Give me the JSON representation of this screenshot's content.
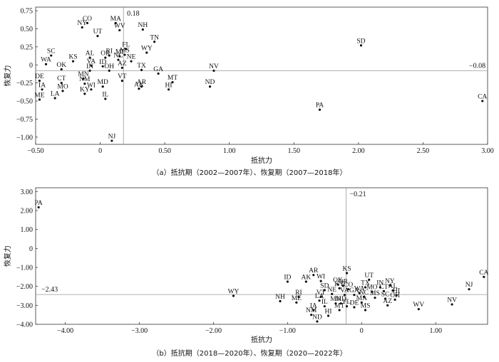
{
  "chart_data": [
    {
      "type": "scatter",
      "caption": "（a）抵抗期（2002—2007年）、恢复期（2007—2018年）",
      "xlabel": "抵抗力",
      "ylabel": "恢复力",
      "xlim": [
        -0.5,
        3.0
      ],
      "ylim": [
        -1.1,
        0.8
      ],
      "xticks": [
        -0.5,
        0,
        0.5,
        1.0,
        1.5,
        2.0,
        2.5,
        3.0
      ],
      "xtick_labels": [
        "−0.50",
        "0",
        "0.50",
        "1.00",
        "1.50",
        "2.00",
        "2.50",
        "3.00"
      ],
      "yticks": [
        0.75,
        0.5,
        0.25,
        0,
        -0.25,
        -0.5,
        -0.75,
        -1.0
      ],
      "ytick_labels": [
        "0.75",
        "0.50",
        "0.25",
        "0",
        "−0.25",
        "−0.50",
        "−0.75",
        "−1.00"
      ],
      "ref_x": 0.18,
      "ref_x_label": "0.18",
      "ref_y": -0.08,
      "ref_y_label": "−0.08",
      "grid": false,
      "points": [
        {
          "label": "CO",
          "x": -0.1,
          "y": 0.58
        },
        {
          "label": "NY",
          "x": -0.14,
          "y": 0.52
        },
        {
          "label": "UT",
          "x": -0.02,
          "y": 0.4
        },
        {
          "label": "MA",
          "x": 0.12,
          "y": 0.58
        },
        {
          "label": "WV",
          "x": 0.15,
          "y": 0.48
        },
        {
          "label": "NH",
          "x": 0.33,
          "y": 0.49
        },
        {
          "label": "TN",
          "x": 0.42,
          "y": 0.32
        },
        {
          "label": "FL",
          "x": 0.2,
          "y": 0.22
        },
        {
          "label": "WY",
          "x": 0.36,
          "y": 0.17
        },
        {
          "label": "SC",
          "x": -0.38,
          "y": 0.13
        },
        {
          "label": "KS",
          "x": -0.21,
          "y": 0.05
        },
        {
          "label": "AL",
          "x": -0.08,
          "y": 0.1
        },
        {
          "label": "OR",
          "x": 0.04,
          "y": 0.1
        },
        {
          "label": "RI",
          "x": 0.07,
          "y": 0.13
        },
        {
          "label": "MI",
          "x": 0.15,
          "y": 0.12
        },
        {
          "label": "MS",
          "x": 0.19,
          "y": 0.14
        },
        {
          "label": "NC",
          "x": 0.14,
          "y": 0.07
        },
        {
          "label": "NE",
          "x": 0.24,
          "y": 0.05
        },
        {
          "label": "WA",
          "x": -0.42,
          "y": 0.01
        },
        {
          "label": "OK",
          "x": -0.3,
          "y": -0.06
        },
        {
          "label": "VA",
          "x": -0.07,
          "y": -0.01
        },
        {
          "label": "ID",
          "x": 0.02,
          "y": -0.02
        },
        {
          "label": "AZ",
          "x": 0.17,
          "y": -0.04
        },
        {
          "label": "TX",
          "x": 0.32,
          "y": -0.07
        },
        {
          "label": "GA",
          "x": 0.45,
          "y": -0.12
        },
        {
          "label": "NV",
          "x": 0.88,
          "y": -0.08
        },
        {
          "label": "SD",
          "x": 2.02,
          "y": 0.27
        },
        {
          "label": "IN",
          "x": -0.08,
          "y": -0.08
        },
        {
          "label": "OH",
          "x": 0.07,
          "y": -0.08
        },
        {
          "label": "DE",
          "x": -0.47,
          "y": -0.22
        },
        {
          "label": "IA",
          "x": -0.45,
          "y": -0.34
        },
        {
          "label": "MN",
          "x": -0.13,
          "y": -0.19
        },
        {
          "label": "CT",
          "x": -0.3,
          "y": -0.25
        },
        {
          "label": "NM",
          "x": -0.12,
          "y": -0.26
        },
        {
          "label": "MD",
          "x": 0.02,
          "y": -0.3
        },
        {
          "label": "VT",
          "x": 0.17,
          "y": -0.22
        },
        {
          "label": "AR",
          "x": 0.32,
          "y": -0.3
        },
        {
          "label": "AK",
          "x": 0.3,
          "y": -0.33
        },
        {
          "label": "MT",
          "x": 0.56,
          "y": -0.24
        },
        {
          "label": "HI",
          "x": 0.53,
          "y": -0.34
        },
        {
          "label": "ND",
          "x": 0.85,
          "y": -0.3
        },
        {
          "label": "MO",
          "x": -0.29,
          "y": -0.36
        },
        {
          "label": "WI",
          "x": -0.07,
          "y": -0.34
        },
        {
          "label": "KY",
          "x": -0.12,
          "y": -0.4
        },
        {
          "label": "LA",
          "x": -0.35,
          "y": -0.46
        },
        {
          "label": "ME",
          "x": -0.47,
          "y": -0.48
        },
        {
          "label": "IL",
          "x": 0.04,
          "y": -0.47
        },
        {
          "label": "PA",
          "x": 1.7,
          "y": -0.62
        },
        {
          "label": "CA",
          "x": 2.96,
          "y": -0.5
        },
        {
          "label": "NJ",
          "x": 0.09,
          "y": -1.05
        }
      ]
    },
    {
      "type": "scatter",
      "caption": "（b）抵抗期（2018—2020年）、恢复期（2020—2022年）",
      "xlabel": "抵抗力",
      "ylabel": "恢复力",
      "xlim": [
        -4.4,
        1.7
      ],
      "ylim": [
        -4.0,
        3.2
      ],
      "xticks": [
        -4.0,
        -3.0,
        -2.0,
        -1.0,
        0,
        1.0
      ],
      "xtick_labels": [
        "−4.00",
        "−3.00",
        "−2.00",
        "−1.00",
        "0",
        "1.00"
      ],
      "yticks": [
        3.0,
        2.0,
        1.0,
        0,
        -1.0,
        -2.0,
        -3.0,
        -4.0
      ],
      "ytick_labels": [
        "3.00",
        "2.00",
        "1.00",
        "0",
        "−1.00",
        "−2.00",
        "−3.00",
        "−4.00"
      ],
      "ref_x": -0.21,
      "ref_x_label": "−0.21",
      "ref_y": -2.43,
      "ref_y_label": "−2.43",
      "grid": false,
      "points": [
        {
          "label": "PA",
          "x": -4.36,
          "y": 2.17
        },
        {
          "label": "WY",
          "x": -1.73,
          "y": -2.5
        },
        {
          "label": "ID",
          "x": -1.0,
          "y": -1.75
        },
        {
          "label": "AR",
          "x": -0.65,
          "y": -1.4
        },
        {
          "label": "AK",
          "x": -0.75,
          "y": -1.75
        },
        {
          "label": "WI",
          "x": -0.55,
          "y": -1.72
        },
        {
          "label": "KS",
          "x": -0.2,
          "y": -1.3
        },
        {
          "label": "OK",
          "x": -0.32,
          "y": -1.9
        },
        {
          "label": "OR",
          "x": -0.25,
          "y": -1.97
        },
        {
          "label": "SD",
          "x": -0.5,
          "y": -2.2
        },
        {
          "label": "KY",
          "x": -0.3,
          "y": -2.1
        },
        {
          "label": "CO",
          "x": -0.18,
          "y": -2.15
        },
        {
          "label": "NE",
          "x": -0.4,
          "y": -2.4
        },
        {
          "label": "VT",
          "x": -0.55,
          "y": -2.55
        },
        {
          "label": "VA",
          "x": -0.23,
          "y": -2.45
        },
        {
          "label": "GA",
          "x": -0.1,
          "y": -2.45
        },
        {
          "label": "UT",
          "x": 0.1,
          "y": -1.65
        },
        {
          "label": "TX",
          "x": 0.05,
          "y": -2.05
        },
        {
          "label": "IN",
          "x": 0.25,
          "y": -2.05
        },
        {
          "label": "NY",
          "x": 0.38,
          "y": -1.95
        },
        {
          "label": "WA",
          "x": -0.03,
          "y": -2.35
        },
        {
          "label": "MO",
          "x": 0.14,
          "y": -2.28
        },
        {
          "label": "CT",
          "x": 0.3,
          "y": -2.25
        },
        {
          "label": "AL",
          "x": 0.42,
          "y": -2.22
        },
        {
          "label": "HI",
          "x": 0.47,
          "y": -2.47
        },
        {
          "label": "NC",
          "x": 0.03,
          "y": -2.55
        },
        {
          "label": "MS",
          "x": 0.18,
          "y": -2.6
        },
        {
          "label": "SC",
          "x": 0.32,
          "y": -2.65
        },
        {
          "label": "OH",
          "x": 0.45,
          "y": -2.7
        },
        {
          "label": "AZ",
          "x": 0.35,
          "y": -3.0
        },
        {
          "label": "NH",
          "x": -1.1,
          "y": -2.78
        },
        {
          "label": "RI",
          "x": -0.85,
          "y": -2.55
        },
        {
          "label": "ME",
          "x": -0.88,
          "y": -2.85
        },
        {
          "label": "LA",
          "x": -0.57,
          "y": -2.75
        },
        {
          "label": "IL",
          "x": -0.5,
          "y": -3.05
        },
        {
          "label": "IA",
          "x": -0.65,
          "y": -3.25
        },
        {
          "label": "NM",
          "x": -0.68,
          "y": -3.5
        },
        {
          "label": "HI2",
          "display": "HI",
          "x": -0.45,
          "y": -3.55
        },
        {
          "label": "ND",
          "x": -0.6,
          "y": -3.85
        },
        {
          "label": "MN",
          "x": -0.35,
          "y": -2.9
        },
        {
          "label": "MD",
          "x": -0.28,
          "y": -2.9
        },
        {
          "label": "FL",
          "x": -0.2,
          "y": -3.05
        },
        {
          "label": "MT",
          "x": -0.3,
          "y": -3.25
        },
        {
          "label": "DE",
          "x": -0.1,
          "y": -3.1
        },
        {
          "label": "MA",
          "x": 0.0,
          "y": -2.85
        },
        {
          "label": "MS2",
          "display": "MS",
          "x": 0.05,
          "y": -3.25
        },
        {
          "label": "WV",
          "x": 0.77,
          "y": -3.2
        },
        {
          "label": "NV",
          "x": 1.22,
          "y": -2.95
        },
        {
          "label": "NJ",
          "x": 1.45,
          "y": -2.15
        },
        {
          "label": "CA",
          "x": 1.65,
          "y": -1.5
        }
      ]
    }
  ]
}
